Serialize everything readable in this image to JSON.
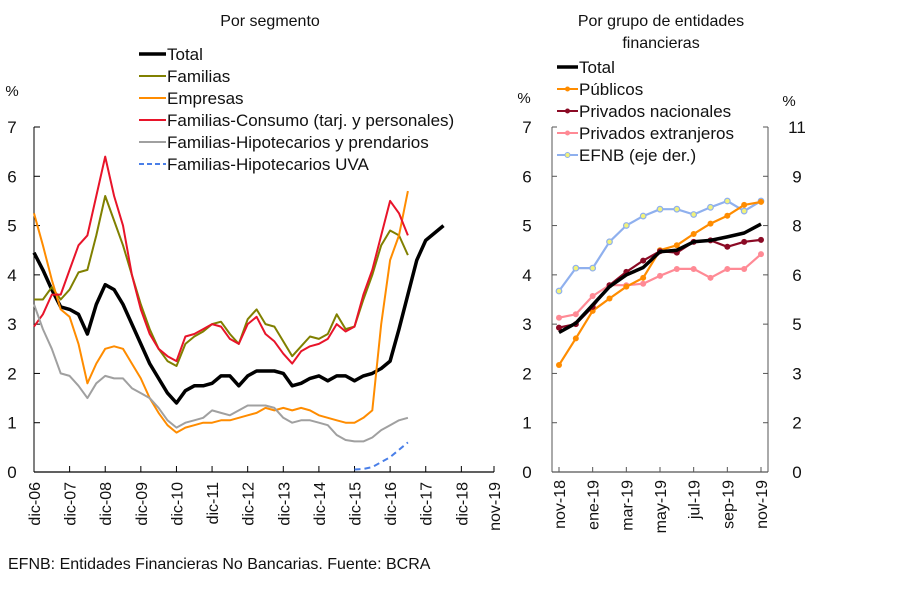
{
  "chart_data": [
    {
      "type": "line",
      "title": "Por segmento",
      "ylabel": "%",
      "ylim": [
        0,
        7
      ],
      "yticks": [
        "0",
        "1",
        "2",
        "3",
        "4",
        "5",
        "6",
        "7"
      ],
      "xticks": [
        "dic-06",
        "dic-07",
        "dic-08",
        "dic-09",
        "dic-10",
        "dic-11",
        "dic-12",
        "dic-13",
        "dic-14",
        "dic-15",
        "dic-16",
        "dic-17",
        "dic-18",
        "nov-19"
      ],
      "x_unit": "months since dic-06 (quarterly samples)",
      "x": [
        0,
        3,
        6,
        9,
        12,
        15,
        18,
        21,
        24,
        27,
        30,
        33,
        36,
        39,
        42,
        45,
        48,
        51,
        54,
        57,
        60,
        63,
        66,
        69,
        72,
        75,
        78,
        81,
        84,
        87,
        90,
        93,
        96,
        99,
        102,
        105,
        108,
        111,
        114,
        117,
        120,
        123,
        126,
        129,
        132,
        135,
        138,
        141,
        144,
        147,
        150,
        153,
        155
      ],
      "legend_position": "top",
      "series": [
        {
          "name": "Total",
          "color": "#000000",
          "dash": false,
          "width": 3.5,
          "values": [
            4.45,
            4.1,
            3.7,
            3.35,
            3.3,
            3.2,
            2.8,
            3.4,
            3.8,
            3.7,
            3.4,
            3.0,
            2.6,
            2.2,
            1.9,
            1.6,
            1.4,
            1.65,
            1.75,
            1.75,
            1.8,
            1.95,
            1.95,
            1.75,
            1.95,
            2.05,
            2.05,
            2.05,
            2.0,
            1.75,
            1.8,
            1.9,
            1.95,
            1.85,
            1.95,
            1.95,
            1.85,
            1.95,
            2.0,
            2.1,
            2.25,
            2.9,
            3.6,
            4.3,
            4.7,
            4.85,
            5.0,
            null,
            null,
            null,
            null,
            null,
            null
          ]
        },
        {
          "name": "Familias",
          "color": "#808000",
          "dash": false,
          "width": 2,
          "values": [
            3.5,
            3.5,
            3.75,
            3.5,
            3.7,
            4.05,
            4.1,
            4.8,
            5.6,
            5.1,
            4.6,
            4.0,
            3.4,
            2.9,
            2.5,
            2.25,
            2.15,
            2.6,
            2.75,
            2.85,
            3.0,
            3.05,
            2.8,
            2.6,
            3.1,
            3.3,
            3.0,
            2.95,
            2.65,
            2.35,
            2.55,
            2.75,
            2.7,
            2.8,
            3.2,
            2.9,
            2.95,
            3.5,
            4.0,
            4.6,
            4.9,
            4.8,
            4.4,
            null,
            null,
            null,
            null,
            null,
            null,
            null,
            null,
            null,
            null
          ]
        },
        {
          "name": "Empresas",
          "color": "#FF8C00",
          "dash": false,
          "width": 2,
          "values": [
            5.25,
            4.6,
            3.9,
            3.3,
            3.15,
            2.6,
            1.8,
            2.2,
            2.5,
            2.55,
            2.5,
            2.2,
            1.9,
            1.5,
            1.2,
            0.95,
            0.8,
            0.9,
            0.95,
            1.0,
            1.0,
            1.05,
            1.05,
            1.1,
            1.15,
            1.2,
            1.3,
            1.25,
            1.3,
            1.25,
            1.3,
            1.25,
            1.15,
            1.1,
            1.05,
            1.0,
            1.0,
            1.1,
            1.25,
            3.0,
            4.3,
            4.8,
            5.7,
            null,
            null,
            null,
            null,
            null,
            null,
            null,
            null,
            null,
            null
          ]
        },
        {
          "name": "Familias-Consumo (tarj. y personales)",
          "color": "#E8142A",
          "dash": false,
          "width": 2,
          "values": [
            2.95,
            3.2,
            3.6,
            3.6,
            4.1,
            4.6,
            4.8,
            5.6,
            6.4,
            5.6,
            5.0,
            4.0,
            3.3,
            2.8,
            2.5,
            2.35,
            2.25,
            2.75,
            2.8,
            2.9,
            3.0,
            2.95,
            2.7,
            2.6,
            3.0,
            3.15,
            2.8,
            2.65,
            2.4,
            2.2,
            2.45,
            2.55,
            2.6,
            2.7,
            3.0,
            2.85,
            2.95,
            3.6,
            4.1,
            4.8,
            5.5,
            5.25,
            4.8,
            null,
            null,
            null,
            null,
            null,
            null,
            null,
            null,
            null,
            null
          ]
        },
        {
          "name": "Familias-Hipotecarios y prendarios",
          "color": "#A0A0A0",
          "dash": false,
          "width": 2,
          "values": [
            3.4,
            2.9,
            2.5,
            2.0,
            1.95,
            1.75,
            1.5,
            1.8,
            1.95,
            1.9,
            1.9,
            1.7,
            1.6,
            1.5,
            1.3,
            1.05,
            0.9,
            1.0,
            1.05,
            1.1,
            1.25,
            1.2,
            1.15,
            1.25,
            1.35,
            1.35,
            1.35,
            1.3,
            1.1,
            1.0,
            1.05,
            1.05,
            1.0,
            0.95,
            0.75,
            0.65,
            0.62,
            0.62,
            0.7,
            0.85,
            0.95,
            1.05,
            1.1,
            null,
            null,
            null,
            null,
            null,
            null,
            null,
            null,
            null,
            null
          ]
        },
        {
          "name": "Familias-Hipotecarios UVA",
          "color": "#4A7FE8",
          "dash": true,
          "width": 2,
          "values": [
            null,
            null,
            null,
            null,
            null,
            null,
            null,
            null,
            null,
            null,
            null,
            null,
            null,
            null,
            null,
            null,
            null,
            null,
            null,
            null,
            null,
            null,
            null,
            null,
            null,
            null,
            null,
            null,
            null,
            null,
            null,
            null,
            null,
            null,
            null,
            null,
            0.05,
            0.06,
            0.1,
            0.2,
            0.3,
            0.45,
            0.6,
            null,
            null,
            null,
            null,
            null,
            null,
            null,
            null,
            null,
            null
          ]
        }
      ]
    },
    {
      "type": "line",
      "title": "Por grupo de entidades financieras",
      "ylabel": "%",
      "ylabel_right": "%",
      "ylim": [
        0,
        7
      ],
      "ylim_right": [
        0,
        11
      ],
      "yticks": [
        "0",
        "1",
        "2",
        "3",
        "4",
        "5",
        "6",
        "7"
      ],
      "yticks_right": [
        "0",
        "2",
        "3",
        "5",
        "6",
        "8",
        "9",
        "11"
      ],
      "x": [
        "nov-18",
        "dic-18",
        "ene-19",
        "feb-19",
        "mar-19",
        "abr-19",
        "may-19",
        "jun-19",
        "jul-19",
        "ago-19",
        "sep-19",
        "oct-19",
        "nov-19"
      ],
      "xticks": [
        "nov-18",
        "ene-19",
        "mar-19",
        "may-19",
        "jul-19",
        "sep-19",
        "nov-19"
      ],
      "legend_position": "top-left",
      "series": [
        {
          "name": "Total",
          "color": "#000000",
          "marker": false,
          "axis": "left",
          "values": [
            2.83,
            3.02,
            3.39,
            3.76,
            4.0,
            4.15,
            4.47,
            4.5,
            4.67,
            4.7,
            4.77,
            4.85,
            5.03
          ]
        },
        {
          "name": "Públicos",
          "color": "#FF8C00",
          "marker": true,
          "axis": "left",
          "values": [
            2.17,
            2.71,
            3.27,
            3.52,
            3.76,
            3.94,
            4.5,
            4.6,
            4.83,
            5.04,
            5.2,
            5.42,
            5.48
          ]
        },
        {
          "name": "Privados nacionales",
          "color": "#8B0A25",
          "marker": true,
          "axis": "left",
          "values": [
            2.93,
            3.0,
            3.35,
            3.79,
            4.06,
            4.29,
            4.48,
            4.45,
            4.67,
            4.7,
            4.57,
            4.67,
            4.71
          ]
        },
        {
          "name": "Privados extranjeros",
          "color": "#FF8A95",
          "marker": true,
          "axis": "left",
          "values": [
            3.13,
            3.2,
            3.57,
            3.79,
            3.79,
            3.82,
            3.98,
            4.12,
            4.12,
            3.94,
            4.12,
            4.12,
            4.42
          ]
        },
        {
          "name": "EFNB (eje der.)",
          "color": "#8FB0EE",
          "marker": true,
          "marker_fill": "#F2F27A",
          "axis": "right",
          "values": [
            5.77,
            6.5,
            6.5,
            7.34,
            7.86,
            8.16,
            8.38,
            8.38,
            8.21,
            8.44,
            8.64,
            8.32,
            8.64
          ]
        }
      ]
    }
  ],
  "footnote": "EFNB: Entidades Financieras No Bancarias. Fuente: BCRA"
}
